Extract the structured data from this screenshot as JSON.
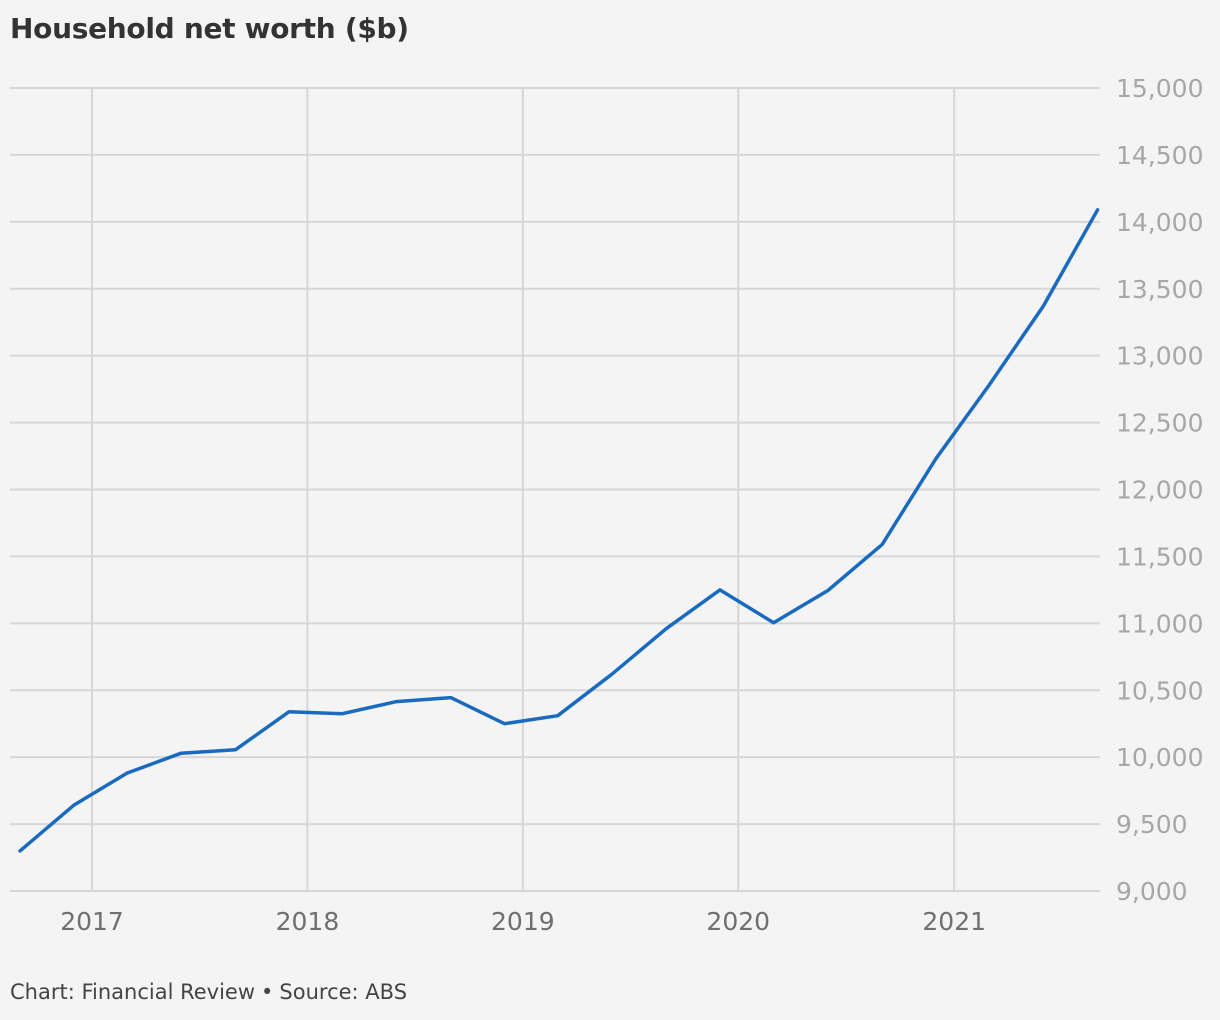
{
  "title": "Household net worth ($b)",
  "footer": {
    "chart_credit": "Chart: Financial Review",
    "separator": "•",
    "source": "Source: ABS"
  },
  "colors": {
    "background": "#f4f4f4",
    "line": "#1a6bbf",
    "grid": "#d6d6d6"
  },
  "chart_data": {
    "type": "line",
    "title": "Household net worth ($b)",
    "xlabel": "",
    "ylabel": "",
    "ylim": [
      9000,
      15000
    ],
    "xlim": [
      "2016-08-15",
      "2021-09-05"
    ],
    "y_axis_position": "right",
    "grid": true,
    "legend": "none",
    "yticks": [
      9000,
      9500,
      10000,
      10500,
      11000,
      11500,
      12000,
      12500,
      13000,
      13500,
      14000,
      14500,
      15000
    ],
    "ytick_labels": [
      "9,000",
      "9,500",
      "10,000",
      "10,500",
      "11,000",
      "11,500",
      "12,000",
      "12,500",
      "13,000",
      "13,500",
      "14,000",
      "14,500",
      "15,000"
    ],
    "xticks": [
      "2017-01-01",
      "2018-01-01",
      "2019-01-01",
      "2020-01-01",
      "2021-01-01"
    ],
    "xtick_labels": [
      "2017",
      "2018",
      "2019",
      "2020",
      "2021"
    ],
    "series": [
      {
        "x": [
          "2016-09-01",
          "2016-12-01",
          "2017-03-01",
          "2017-06-01",
          "2017-09-01",
          "2017-12-01",
          "2018-03-01",
          "2018-06-01",
          "2018-09-01",
          "2018-12-01",
          "2019-03-01",
          "2019-06-01",
          "2019-09-01",
          "2019-12-01",
          "2020-03-01",
          "2020-06-01",
          "2020-09-01",
          "2020-12-01",
          "2021-03-01",
          "2021-06-01",
          "2021-09-01"
        ],
        "y": [
          9300,
          9640,
          9880,
          10030,
          10055,
          10340,
          10325,
          10415,
          10445,
          10250,
          10310,
          10620,
          10960,
          11250,
          11005,
          11245,
          11590,
          12230,
          12780,
          13370,
          14090
        ]
      }
    ]
  }
}
